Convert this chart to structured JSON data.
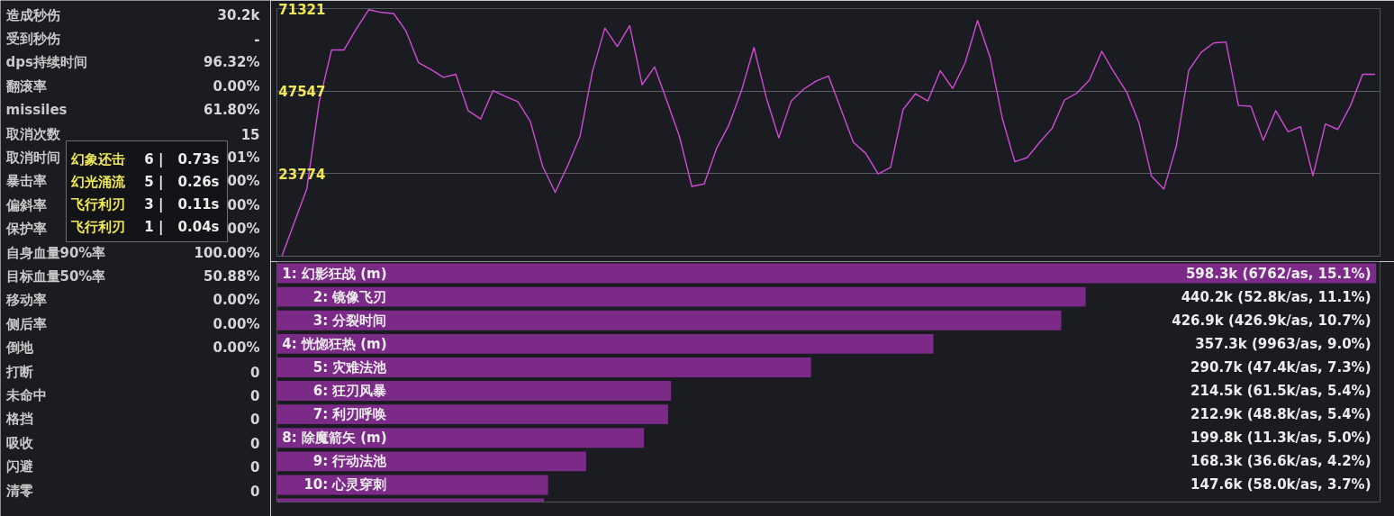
{
  "chart_data": [
    {
      "type": "other",
      "categories": [
        "造成秒伤",
        "受到秒伤",
        "dps持续时间",
        "翻滚率",
        "missiles",
        "取消次数",
        "取消时间",
        "暴击率",
        "偏斜率",
        "保护率",
        "自身血量90%率",
        "目标血量50%率",
        "移动率",
        "侧后率",
        "倒地",
        "打断",
        "未命中",
        "格挡",
        "吸收",
        "闪避",
        "清零"
      ],
      "value_labels": [
        "30.2k",
        "-",
        "96.32%",
        "0.00%",
        "61.80%",
        "15",
        "01%",
        "00%",
        "00%",
        "00%",
        "100.00%",
        "50.88%",
        "0.00%",
        "0.00%",
        "0.00%",
        "0",
        "0",
        "0",
        "0",
        "0",
        "0"
      ],
      "annotations": [
        "幻象还击 6 | 0.73s",
        "幻光涌流 5 | 0.26s",
        "飞行利刃 3 | 0.11s",
        "飞行利刃 1 | 0.04s"
      ]
    },
    {
      "type": "line",
      "color": "#d04bd4",
      "ylim": [
        0,
        71321
      ],
      "yticks": [
        23774,
        47547,
        71321
      ],
      "grid": "y",
      "tick_labels": "y",
      "categories": [
        null,
        null,
        null,
        null,
        null,
        null,
        null,
        null,
        null,
        null,
        null,
        null,
        null,
        null,
        null,
        null,
        null,
        null,
        null,
        null,
        null,
        null,
        null,
        null,
        null,
        null,
        null,
        null,
        null,
        null,
        null,
        null,
        null,
        null,
        null,
        null,
        null,
        null,
        null,
        null,
        null,
        null,
        null,
        null,
        null,
        null,
        null,
        null,
        null,
        null,
        null,
        null,
        null,
        null,
        null,
        null,
        null,
        null,
        null,
        null,
        null,
        null,
        null,
        null,
        null,
        null,
        null,
        null,
        null,
        null,
        null,
        null,
        null,
        null,
        null,
        null,
        null,
        null,
        null,
        null,
        null,
        null,
        null,
        null,
        null,
        null,
        null,
        null,
        null
      ],
      "values": [
        0,
        9700,
        19300,
        44300,
        59400,
        59400,
        65500,
        71000,
        70200,
        69900,
        64800,
        55700,
        53800,
        51500,
        52400,
        41900,
        39500,
        47700,
        46000,
        44500,
        38800,
        25800,
        18400,
        26000,
        34500,
        53200,
        65700,
        60400,
        66400,
        49400,
        54500,
        44700,
        34500,
        20100,
        20800,
        31100,
        37900,
        47700,
        60100,
        45600,
        34100,
        44700,
        48100,
        50400,
        51900,
        42400,
        32800,
        29600,
        23700,
        25600,
        42200,
        46800,
        44700,
        53400,
        48300,
        55700,
        67900,
        57400,
        39600,
        27200,
        28400,
        32800,
        36800,
        45000,
        47000,
        50700,
        59000,
        52900,
        47300,
        38300,
        23100,
        19300,
        31700,
        53500,
        58700,
        61400,
        61700,
        43400,
        43200,
        33400,
        41900,
        35800,
        37300,
        23200,
        38100,
        36500,
        43200,
        52400,
        52400
      ]
    },
    {
      "type": "bar",
      "orientation": "horizontal",
      "color": "#7b2a87",
      "categories": [
        "1: 幻影狂战 (m)",
        "2: 镜像飞刃",
        "3: 分裂时间",
        "4: 恍惚狂热 (m)",
        "5: 灾难法池",
        "6: 狂刃风暴",
        "7: 利刃呼唤",
        "8: 除魔箭矢 (m)",
        "9: 行动法池",
        "10: 心灵穿刺",
        null
      ],
      "values": [
        598300,
        440200,
        426900,
        357300,
        290700,
        214500,
        212900,
        199800,
        168300,
        147600,
        145500
      ],
      "value_labels": [
        "598.3k (6762/as, 15.1%)",
        "440.2k (52.8k/as, 11.1%)",
        "426.9k (426.9k/as, 10.7%)",
        "357.3k (9963/as, 9.0%)",
        "290.7k (47.4k/as, 7.3%)",
        "214.5k (61.5k/as, 5.4%)",
        "212.9k (48.8k/as, 5.4%)",
        "199.8k (11.3k/as, 5.0%)",
        "168.3k (36.6k/as, 4.2%)",
        "147.6k (58.0k/as, 3.7%)",
        null
      ]
    }
  ]
}
